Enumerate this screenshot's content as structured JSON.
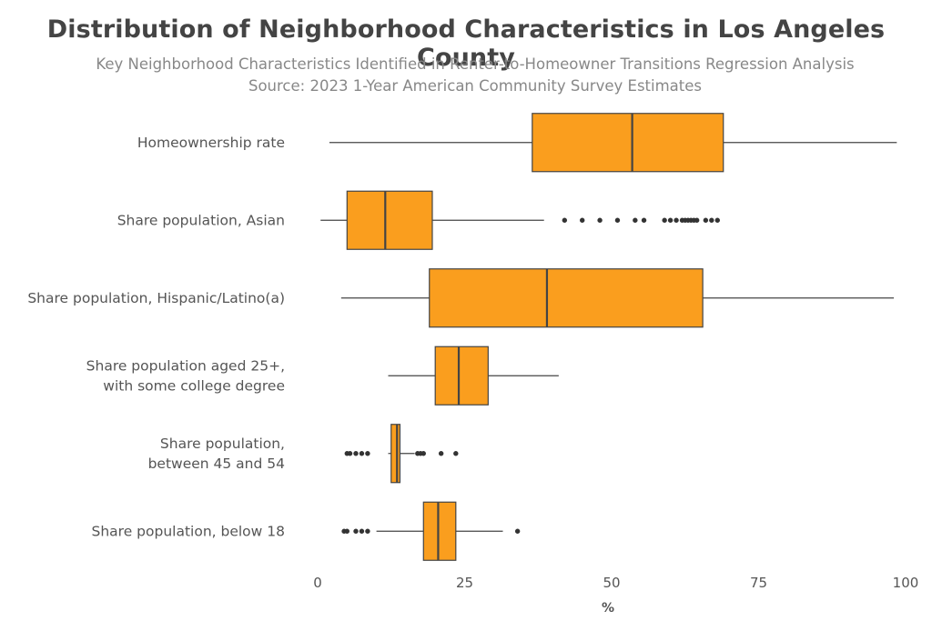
{
  "title": "Distribution of Neighborhood Characteristics in Los Angeles County",
  "subtitle_1": "Key Neighborhood Characteristics Identified in Renter-to-Homeowner Transitions Regression Analysis",
  "subtitle_2": "Source: 2023 1-Year American Community Survey Estimates",
  "colors": {
    "box_fill": "#fa9e1e",
    "box_stroke": "#444444",
    "whisker": "#444444",
    "outlier": "#333333"
  },
  "chart_data": {
    "type": "boxplot",
    "orientation": "horizontal",
    "title": "Distribution of Neighborhood Characteristics in Los Angeles County",
    "xlabel": "%",
    "xlim": [
      0,
      100
    ],
    "xticks": [
      "0",
      "25",
      "50",
      "75",
      "100"
    ],
    "xtick_values": [
      0,
      25,
      50,
      75,
      100
    ],
    "grid": false,
    "series": [
      {
        "category": "Homeownership rate",
        "min": 2,
        "q1": 36.5,
        "median": 53.5,
        "q3": 69,
        "max": 98.5,
        "outliers": []
      },
      {
        "category": "Share population, Asian",
        "min": 0.5,
        "q1": 5,
        "median": 11.5,
        "q3": 19.5,
        "max": 38.5,
        "outliers": [
          42,
          45,
          48,
          51,
          54,
          55.5,
          59,
          60,
          61,
          62,
          62.5,
          63,
          63.5,
          64,
          64.5,
          66,
          67,
          68
        ]
      },
      {
        "category": "Share population, Hispanic/Latino(a)",
        "min": 4,
        "q1": 19,
        "median": 39,
        "q3": 65.5,
        "max": 98,
        "outliers": []
      },
      {
        "category": [
          "Share population aged 25+,",
          "with some college degree"
        ],
        "min": 12,
        "q1": 20,
        "median": 24,
        "q3": 29,
        "max": 41,
        "outliers": []
      },
      {
        "category": [
          "Share population,",
          "between 45 and 54"
        ],
        "min": 12,
        "q1": 12.5,
        "median": 13.5,
        "q3": 14,
        "max": 16.5,
        "outliers": [
          5,
          5.5,
          6.5,
          7.5,
          8.5,
          17,
          17.5,
          18,
          21,
          23.5
        ]
      },
      {
        "category": "Share population, below 18",
        "min": 10,
        "q1": 18,
        "median": 20.5,
        "q3": 23.5,
        "max": 31.5,
        "outliers": [
          4.5,
          5,
          6.5,
          7.5,
          8.5,
          34
        ]
      }
    ]
  }
}
